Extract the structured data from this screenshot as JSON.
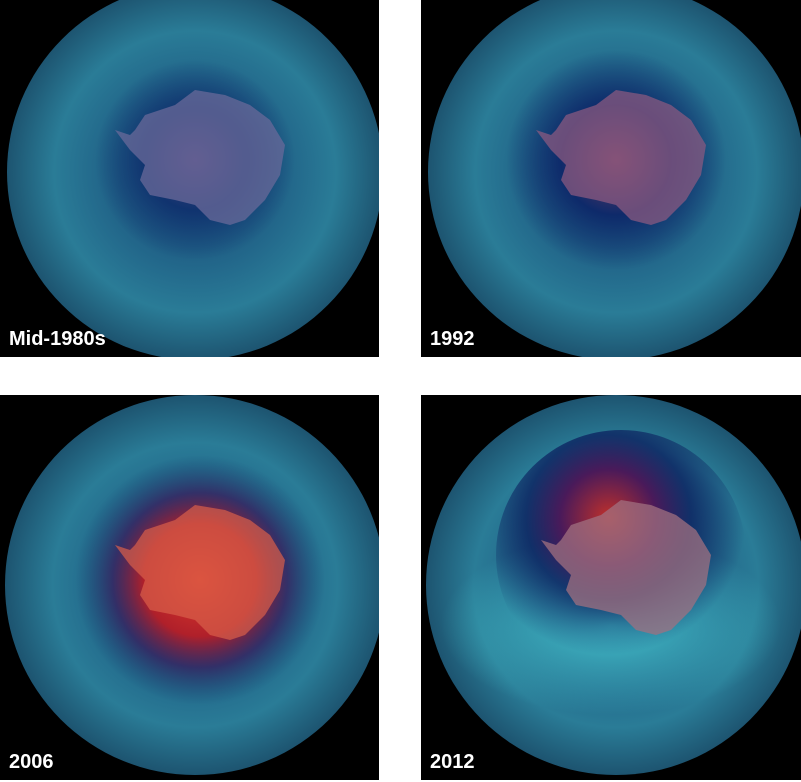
{
  "panels": [
    {
      "label": "Mid-1980s"
    },
    {
      "label": "1992"
    },
    {
      "label": "2006"
    },
    {
      "label": "2012"
    }
  ]
}
